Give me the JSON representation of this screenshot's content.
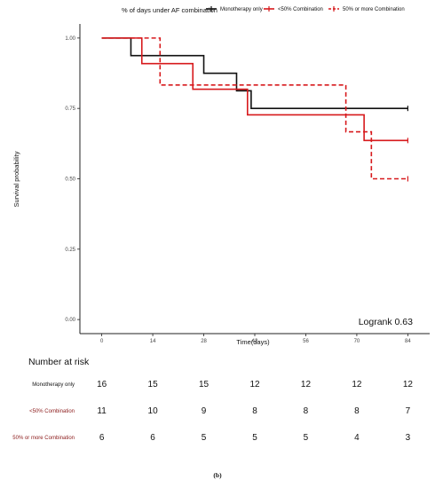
{
  "chart_data": {
    "type": "line",
    "subtype": "kaplan-meier step",
    "title": "",
    "xlabel": "Time(days)",
    "ylabel": "Survival probability",
    "xlim": [
      -6,
      90
    ],
    "ylim": [
      -0.05,
      1.05
    ],
    "xticks": [
      0,
      14,
      28,
      42,
      56,
      70,
      84
    ],
    "yticks": [
      0.0,
      0.25,
      0.5,
      0.75,
      1.0
    ],
    "ytick_labels": [
      "0.00",
      "0.25",
      "0.50",
      "0.75",
      "1.00"
    ],
    "grid": false,
    "legend": {
      "position": "top",
      "title": "% of days under AF combination"
    },
    "annotation": "Logrank 0.63",
    "series": [
      {
        "name": "Monotherapy only",
        "color": "#111111",
        "style": "solid",
        "x": [
          0,
          8,
          14,
          28,
          37,
          41,
          84
        ],
        "y": [
          1.0,
          0.9375,
          0.9375,
          0.875,
          0.8125,
          0.75,
          0.75
        ],
        "censored": [
          84
        ]
      },
      {
        "name": "<50% Combination",
        "color": "#d7191c",
        "style": "solid",
        "x": [
          0,
          11,
          25,
          40,
          72,
          84
        ],
        "y": [
          1.0,
          0.909,
          0.818,
          0.727,
          0.636,
          0.636
        ],
        "censored": [
          84
        ]
      },
      {
        "name": "50% or more Combination",
        "color": "#d7191c",
        "style": "dashed",
        "x": [
          0,
          16,
          67,
          74,
          84
        ],
        "y": [
          1.0,
          0.833,
          0.667,
          0.5,
          0.5
        ],
        "censored": [
          84
        ]
      }
    ],
    "risk_table": {
      "title": "Number at risk",
      "times": [
        0,
        14,
        28,
        42,
        56,
        70,
        84
      ],
      "rows": [
        {
          "label": "Monotherapy only",
          "label_color": "#111111",
          "values": [
            16,
            15,
            15,
            12,
            12,
            12,
            12
          ]
        },
        {
          "label": "<50% Combination",
          "label_color": "#8b1a1a",
          "values": [
            11,
            10,
            9,
            8,
            8,
            8,
            7
          ]
        },
        {
          "label": "50% or more Combination",
          "label_color": "#8b1a1a",
          "values": [
            6,
            6,
            5,
            5,
            5,
            4,
            3
          ]
        }
      ]
    }
  },
  "caption": "(b)"
}
